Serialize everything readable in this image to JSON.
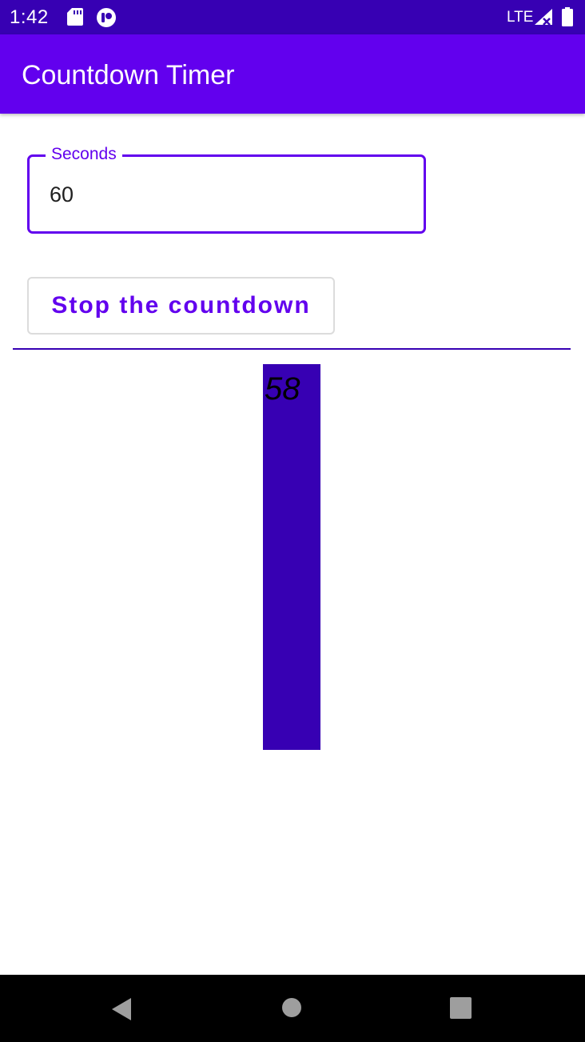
{
  "status_bar": {
    "time": "1:42",
    "network": "LTE",
    "background_color": "#3700b3",
    "icons": [
      "sd-card-icon",
      "app-notification-icon",
      "signal-icon",
      "battery-icon"
    ]
  },
  "app_bar": {
    "title": "Countdown Timer",
    "background_color": "#6200ee"
  },
  "seconds_field": {
    "label": "Seconds",
    "value": "60"
  },
  "stop_button": {
    "label": "Stop the countdown"
  },
  "countdown": {
    "value": "58",
    "bar_color": "#3700b3"
  },
  "nav_bar": {
    "icons": [
      "back-icon",
      "home-icon",
      "recents-icon"
    ]
  }
}
